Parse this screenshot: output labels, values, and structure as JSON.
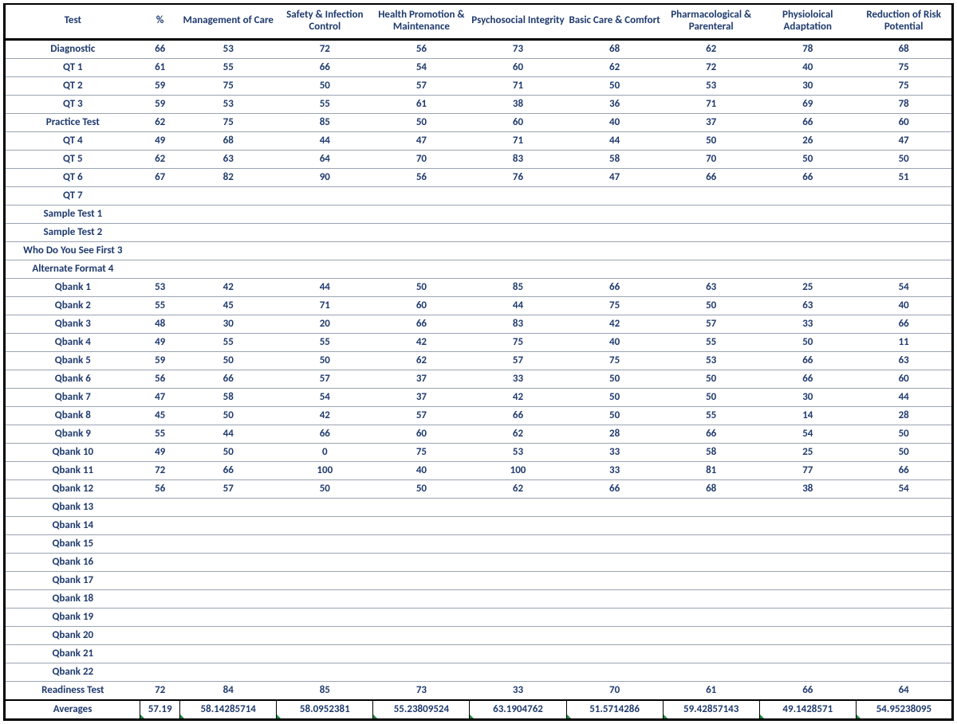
{
  "table": {
    "columns": [
      "Test",
      "%",
      "Management of Care",
      "Safety & Infection Control",
      "Health Promotion & Maintenance",
      "Psychosocial Integrity",
      "Basic Care & Comfort",
      "Pharmacological & Parenteral",
      "Physioloical Adaptation",
      "Reduction of Risk Potential"
    ],
    "col_widths_class": [
      "col-test",
      "col-pct",
      "col-cat",
      "col-cat",
      "col-cat",
      "col-cat",
      "col-cat",
      "col-cat",
      "col-cat",
      "col-cat"
    ],
    "rows": [
      {
        "label": "Diagnostic",
        "v": [
          "66",
          "53",
          "72",
          "56",
          "73",
          "68",
          "62",
          "78",
          "68"
        ]
      },
      {
        "label": "QT 1",
        "v": [
          "61",
          "55",
          "66",
          "54",
          "60",
          "62",
          "72",
          "40",
          "75"
        ]
      },
      {
        "label": "QT 2",
        "v": [
          "59",
          "75",
          "50",
          "57",
          "71",
          "50",
          "53",
          "30",
          "75"
        ]
      },
      {
        "label": "QT 3",
        "v": [
          "59",
          "53",
          "55",
          "61",
          "38",
          "36",
          "71",
          "69",
          "78"
        ]
      },
      {
        "label": "Practice Test",
        "v": [
          "62",
          "75",
          "85",
          "50",
          "60",
          "40",
          "37",
          "66",
          "60"
        ]
      },
      {
        "label": "QT 4",
        "v": [
          "49",
          "68",
          "44",
          "47",
          "71",
          "44",
          "50",
          "26",
          "47"
        ]
      },
      {
        "label": "QT 5",
        "v": [
          "62",
          "63",
          "64",
          "70",
          "83",
          "58",
          "70",
          "50",
          "50"
        ]
      },
      {
        "label": "QT 6",
        "v": [
          "67",
          "82",
          "90",
          "56",
          "76",
          "47",
          "66",
          "66",
          "51"
        ]
      },
      {
        "label": "QT 7",
        "v": [
          "",
          "",
          "",
          "",
          "",
          "",
          "",
          "",
          ""
        ]
      },
      {
        "label": "Sample Test 1",
        "v": [
          "",
          "",
          "",
          "",
          "",
          "",
          "",
          "",
          ""
        ]
      },
      {
        "label": "Sample Test 2",
        "v": [
          "",
          "",
          "",
          "",
          "",
          "",
          "",
          "",
          ""
        ]
      },
      {
        "label": "Who Do You See First 3",
        "v": [
          "",
          "",
          "",
          "",
          "",
          "",
          "",
          "",
          ""
        ]
      },
      {
        "label": "Alternate Format 4",
        "v": [
          "",
          "",
          "",
          "",
          "",
          "",
          "",
          "",
          ""
        ]
      },
      {
        "label": "Qbank 1",
        "v": [
          "53",
          "42",
          "44",
          "50",
          "85",
          "66",
          "63",
          "25",
          "54"
        ]
      },
      {
        "label": "Qbank 2",
        "v": [
          "55",
          "45",
          "71",
          "60",
          "44",
          "75",
          "50",
          "63",
          "40"
        ]
      },
      {
        "label": "Qbank 3",
        "v": [
          "48",
          "30",
          "20",
          "66",
          "83",
          "42",
          "57",
          "33",
          "66"
        ]
      },
      {
        "label": "Qbank 4",
        "v": [
          "49",
          "55",
          "55",
          "42",
          "75",
          "40",
          "55",
          "50",
          "11"
        ]
      },
      {
        "label": "Qbank 5",
        "v": [
          "59",
          "50",
          "50",
          "62",
          "57",
          "75",
          "53",
          "66",
          "63"
        ]
      },
      {
        "label": "Qbank 6",
        "v": [
          "56",
          "66",
          "57",
          "37",
          "33",
          "50",
          "50",
          "66",
          "60"
        ]
      },
      {
        "label": "Qbank 7",
        "v": [
          "47",
          "58",
          "54",
          "37",
          "42",
          "50",
          "50",
          "30",
          "44"
        ]
      },
      {
        "label": "Qbank 8",
        "v": [
          "45",
          "50",
          "42",
          "57",
          "66",
          "50",
          "55",
          "14",
          "28"
        ]
      },
      {
        "label": "Qbank 9",
        "v": [
          "55",
          "44",
          "66",
          "60",
          "62",
          "28",
          "66",
          "54",
          "50"
        ]
      },
      {
        "label": "Qbank 10",
        "v": [
          "49",
          "50",
          "0",
          "75",
          "53",
          "33",
          "58",
          "25",
          "50"
        ]
      },
      {
        "label": "Qbank 11",
        "v": [
          "72",
          "66",
          "100",
          "40",
          "100",
          "33",
          "81",
          "77",
          "66"
        ]
      },
      {
        "label": "Qbank 12",
        "v": [
          "56",
          "57",
          "50",
          "50",
          "62",
          "66",
          "68",
          "38",
          "54"
        ]
      },
      {
        "label": "Qbank 13",
        "v": [
          "",
          "",
          "",
          "",
          "",
          "",
          "",
          "",
          ""
        ]
      },
      {
        "label": "Qbank 14",
        "v": [
          "",
          "",
          "",
          "",
          "",
          "",
          "",
          "",
          ""
        ]
      },
      {
        "label": "Qbank 15",
        "v": [
          "",
          "",
          "",
          "",
          "",
          "",
          "",
          "",
          ""
        ]
      },
      {
        "label": "Qbank 16",
        "v": [
          "",
          "",
          "",
          "",
          "",
          "",
          "",
          "",
          ""
        ]
      },
      {
        "label": "Qbank 17",
        "v": [
          "",
          "",
          "",
          "",
          "",
          "",
          "",
          "",
          ""
        ]
      },
      {
        "label": "Qbank 18",
        "v": [
          "",
          "",
          "",
          "",
          "",
          "",
          "",
          "",
          ""
        ]
      },
      {
        "label": "Qbank 19",
        "v": [
          "",
          "",
          "",
          "",
          "",
          "",
          "",
          "",
          ""
        ]
      },
      {
        "label": "Qbank 20",
        "v": [
          "",
          "",
          "",
          "",
          "",
          "",
          "",
          "",
          ""
        ]
      },
      {
        "label": "Qbank 21",
        "v": [
          "",
          "",
          "",
          "",
          "",
          "",
          "",
          "",
          ""
        ]
      },
      {
        "label": "Qbank 22",
        "v": [
          "",
          "",
          "",
          "",
          "",
          "",
          "",
          "",
          ""
        ]
      },
      {
        "label": "Readiness Test",
        "v": [
          "72",
          "84",
          "85",
          "73",
          "33",
          "70",
          "61",
          "66",
          "64"
        ]
      }
    ],
    "averages": {
      "label": "Averages",
      "v": [
        "57.19",
        "58.14285714",
        "58.0952381",
        "55.23809524",
        "63.1904762",
        "51.5714286",
        "59.42857143",
        "49.1428571",
        "54.95238095"
      ]
    },
    "colors": {
      "text": "#1f3a6e",
      "grid": "#9aa4b2",
      "thick": "#000000",
      "marker": "#1e8e3e",
      "background": "#ffffff"
    },
    "font_size_header": 13,
    "font_size_body": 13
  }
}
